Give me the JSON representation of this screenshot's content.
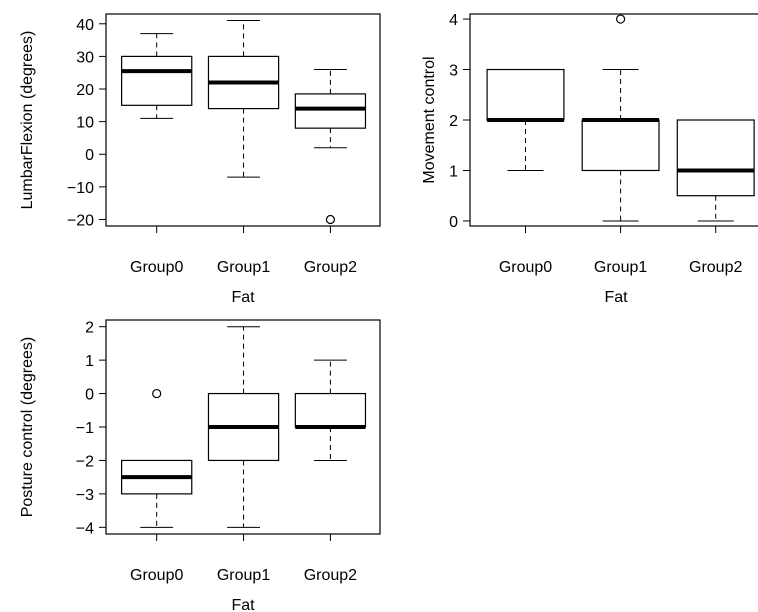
{
  "chart_data": [
    {
      "type": "boxplot",
      "title": "",
      "xlabel": "Fat",
      "ylabel": "LumbarFlexion (degrees)",
      "categories": [
        "Group0",
        "Group1",
        "Group2"
      ],
      "ylim": [
        -22,
        43
      ],
      "yticks": [
        -20,
        -10,
        0,
        10,
        20,
        30,
        40
      ],
      "boxes": [
        {
          "min": 11,
          "q1": 15,
          "median": 25.5,
          "q3": 30,
          "max": 37,
          "outliers": []
        },
        {
          "min": -7,
          "q1": 14,
          "median": 22,
          "q3": 30,
          "max": 41,
          "outliers": []
        },
        {
          "min": 2,
          "q1": 8,
          "median": 14,
          "q3": 18.5,
          "max": 26,
          "outliers": [
            -20
          ]
        }
      ]
    },
    {
      "type": "boxplot",
      "title": "",
      "xlabel": "Fat",
      "ylabel": "Movement control",
      "categories": [
        "Group0",
        "Group1",
        "Group2"
      ],
      "ylim": [
        -0.1,
        4.1
      ],
      "yticks": [
        0,
        1,
        2,
        3,
        4
      ],
      "boxes": [
        {
          "min": 1,
          "q1": 2,
          "median": 2,
          "q3": 3,
          "max": 3,
          "outliers": []
        },
        {
          "min": 0,
          "q1": 1,
          "median": 2,
          "q3": 2,
          "max": 3,
          "outliers": [
            4
          ]
        },
        {
          "min": 0,
          "q1": 0.5,
          "median": 1,
          "q3": 2,
          "max": 2,
          "outliers": []
        }
      ]
    },
    {
      "type": "boxplot",
      "title": "",
      "xlabel": "Fat",
      "ylabel": "Posture control (degrees)",
      "categories": [
        "Group0",
        "Group1",
        "Group2"
      ],
      "ylim": [
        -4.2,
        2.2
      ],
      "yticks": [
        -4,
        -3,
        -2,
        -1,
        0,
        1,
        2
      ],
      "boxes": [
        {
          "min": -4,
          "q1": -3,
          "median": -2.5,
          "q3": -2,
          "max": -2,
          "outliers": [
            0
          ]
        },
        {
          "min": -4,
          "q1": -2,
          "median": -1,
          "q3": 0,
          "max": 2,
          "outliers": []
        },
        {
          "min": -2,
          "q1": -1,
          "median": -1,
          "q3": 0,
          "max": 1,
          "outliers": []
        }
      ]
    }
  ]
}
